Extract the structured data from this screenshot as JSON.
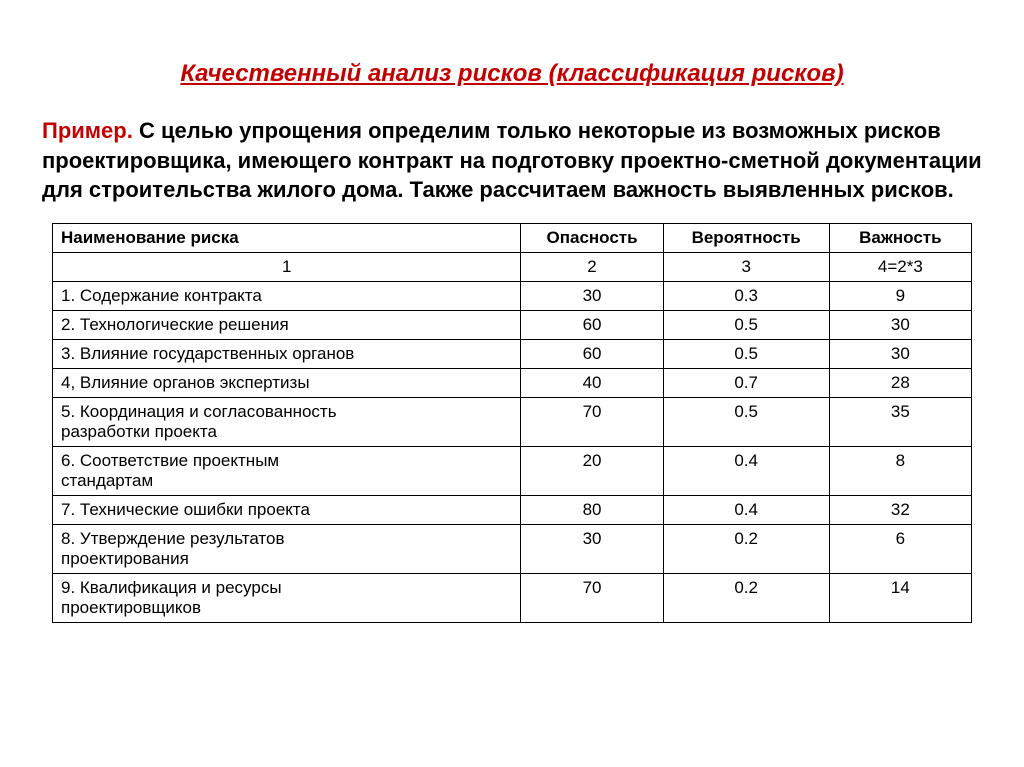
{
  "title": "Качественный анализ рисков (классификация рисков)",
  "intro": {
    "lead": "Пример.",
    "text": " С целью упрощения определим только некоторые из возможных рисков проектировщика, имеющего контракт на подготовку проектно-сметной документации для строительства жилого дома. Также рассчитаем важность выявленных рисков."
  },
  "table": {
    "headers": {
      "name": "Наименование риска",
      "danger": "Опасность",
      "probability": "Вероятность",
      "importance": "Важность"
    },
    "subheaders": {
      "name": "1",
      "danger": "2",
      "probability": "3",
      "importance": "4=2*3"
    },
    "rows": [
      {
        "name": "1. Содержание контракта",
        "danger": "30",
        "probability": "0.3",
        "importance": "9"
      },
      {
        "name": "2. Технологические решения",
        "danger": "60",
        "probability": "0.5",
        "importance": "30"
      },
      {
        "name": "3. Влияние государственных органов",
        "danger": "60",
        "probability": "0.5",
        "importance": "30"
      },
      {
        "name": "4, Влияние органов экспертизы",
        "danger": "40",
        "probability": "0.7",
        "importance": "28"
      },
      {
        "name": "5. Координация и согласованность\n    разработки проекта",
        "danger": "70",
        "probability": "0.5",
        "importance": "35"
      },
      {
        "name": "6. Соответствие проектным\n    стандартам",
        "danger": "20",
        "probability": "0.4",
        "importance": "8"
      },
      {
        "name": "7. Технические ошибки проекта",
        "danger": "80",
        "probability": "0.4",
        "importance": "32"
      },
      {
        "name": "8. Утверждение результатов\n    проектирования",
        "danger": "30",
        "probability": "0.2",
        "importance": "6"
      },
      {
        "name": "9. Квалификация и ресурсы\n    проектировщиков",
        "danger": "70",
        "probability": "0.2",
        "importance": "14"
      }
    ]
  },
  "style": {
    "title_color": "#c00000",
    "lead_color": "#c00000",
    "background": "#ffffff",
    "border_color": "#000000",
    "font_family": "Arial",
    "title_fontsize": 24,
    "intro_fontsize": 22,
    "table_fontsize": 17,
    "col_widths": {
      "name": 395,
      "danger": 120,
      "probability": 140,
      "importance": 120
    }
  }
}
